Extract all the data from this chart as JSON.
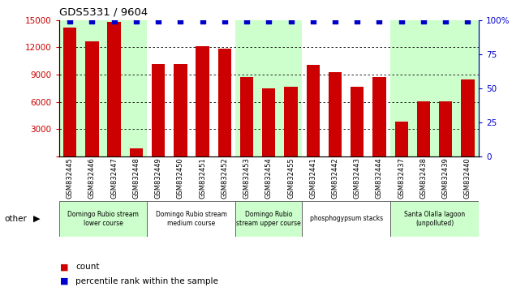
{
  "title": "GDS5331 / 9604",
  "samples": [
    "GSM832445",
    "GSM832446",
    "GSM832447",
    "GSM832448",
    "GSM832449",
    "GSM832450",
    "GSM832451",
    "GSM832452",
    "GSM832453",
    "GSM832454",
    "GSM832455",
    "GSM832441",
    "GSM832442",
    "GSM832443",
    "GSM832444",
    "GSM832437",
    "GSM832438",
    "GSM832439",
    "GSM832440"
  ],
  "counts": [
    14200,
    12700,
    14800,
    900,
    10200,
    10200,
    12100,
    11900,
    8700,
    7500,
    7700,
    10100,
    9300,
    7700,
    8700,
    3800,
    6100,
    6100,
    8500
  ],
  "percentile": [
    99,
    99,
    99,
    99,
    99,
    99,
    99,
    99,
    99,
    99,
    99,
    99,
    99,
    99,
    99,
    99,
    99,
    99,
    99
  ],
  "bar_color": "#cc0000",
  "dot_color": "#0000cc",
  "ylim_left": [
    0,
    15000
  ],
  "ylim_right": [
    0,
    100
  ],
  "yticks_left": [
    0,
    3000,
    6000,
    9000,
    12000,
    15000
  ],
  "yticks_right": [
    0,
    25,
    50,
    75,
    100
  ],
  "ytick_labels_left": [
    "",
    "3000",
    "6000",
    "9000",
    "12000",
    "15000"
  ],
  "ytick_labels_right": [
    "0",
    "25",
    "50",
    "75",
    "100%"
  ],
  "groups": [
    {
      "label": "Domingo Rubio stream\nlower course",
      "start": 0,
      "end": 3,
      "color": "#ccffcc"
    },
    {
      "label": "Domingo Rubio stream\nmedium course",
      "start": 4,
      "end": 7,
      "color": "#ffffff"
    },
    {
      "label": "Domingo Rubio\nstream upper course",
      "start": 8,
      "end": 10,
      "color": "#ccffcc"
    },
    {
      "label": "phosphogypsum stacks",
      "start": 11,
      "end": 14,
      "color": "#ffffff"
    },
    {
      "label": "Santa Olalla lagoon\n(unpolluted)",
      "start": 15,
      "end": 18,
      "color": "#ccffcc"
    }
  ],
  "other_label": "other",
  "legend_count_label": "count",
  "legend_pct_label": "percentile rank within the sample",
  "grid_yticks": [
    3000,
    6000,
    9000,
    12000
  ],
  "plot_bg_color": "#d8d8d8",
  "bar_width": 0.6
}
